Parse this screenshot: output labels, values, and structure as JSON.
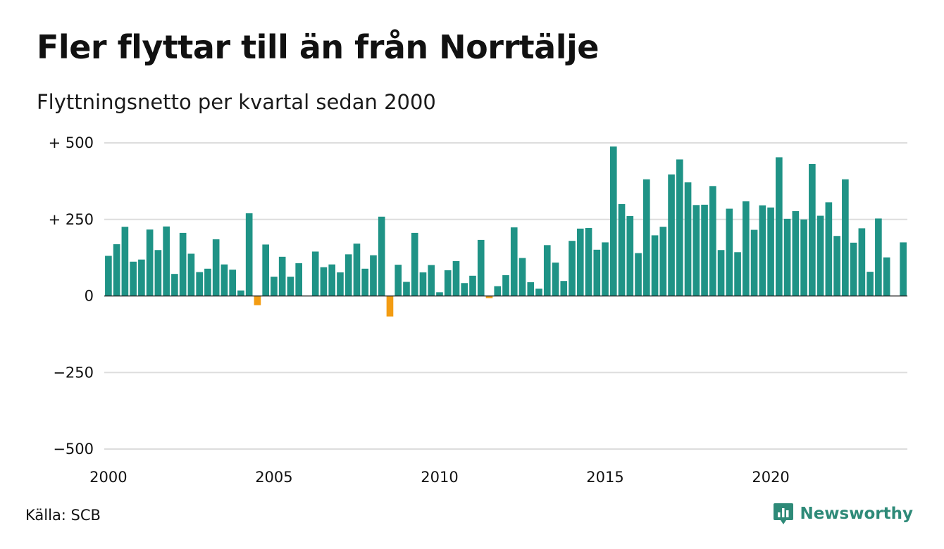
{
  "title": "Fler flyttar till än från Norrtälje",
  "subtitle": "Flyttningsnetto per kvartal sedan 2000",
  "source": "Källa: SCB",
  "brand": {
    "name": "Newsworthy",
    "icon": "newsworthy-logo-icon"
  },
  "colors": {
    "positive": "#1f9386",
    "negative": "#f39c12",
    "grid": "#dddddd",
    "axis": "#222222",
    "brand": "#2e8a78"
  },
  "chart_data": {
    "type": "bar",
    "x_start": "2000 Q1",
    "x_ticks": [
      "2000",
      "2005",
      "2010",
      "2015",
      "2020"
    ],
    "y_ticks": [
      "+ 500",
      "+ 250",
      "0",
      "−250",
      "−500"
    ],
    "ylim": [
      -500,
      500
    ],
    "grid": true,
    "values": [
      131,
      169,
      226,
      112,
      119,
      217,
      150,
      227,
      72,
      206,
      138,
      78,
      89,
      185,
      103,
      86,
      18,
      270,
      -30,
      168,
      63,
      128,
      63,
      107,
      0,
      145,
      94,
      103,
      77,
      136,
      171,
      89,
      133,
      259,
      -67,
      102,
      46,
      206,
      77,
      101,
      12,
      84,
      114,
      42,
      66,
      183,
      -7,
      32,
      68,
      224,
      124,
      45,
      24,
      166,
      109,
      49,
      180,
      220,
      222,
      151,
      175,
      488,
      300,
      261,
      140,
      381,
      198,
      226,
      397,
      446,
      371,
      297,
      298,
      359,
      150,
      285,
      143,
      309,
      216,
      296,
      289,
      453,
      252,
      277,
      250,
      431,
      262,
      306,
      196,
      381,
      174,
      221,
      79,
      253,
      126,
      0,
      175
    ]
  }
}
